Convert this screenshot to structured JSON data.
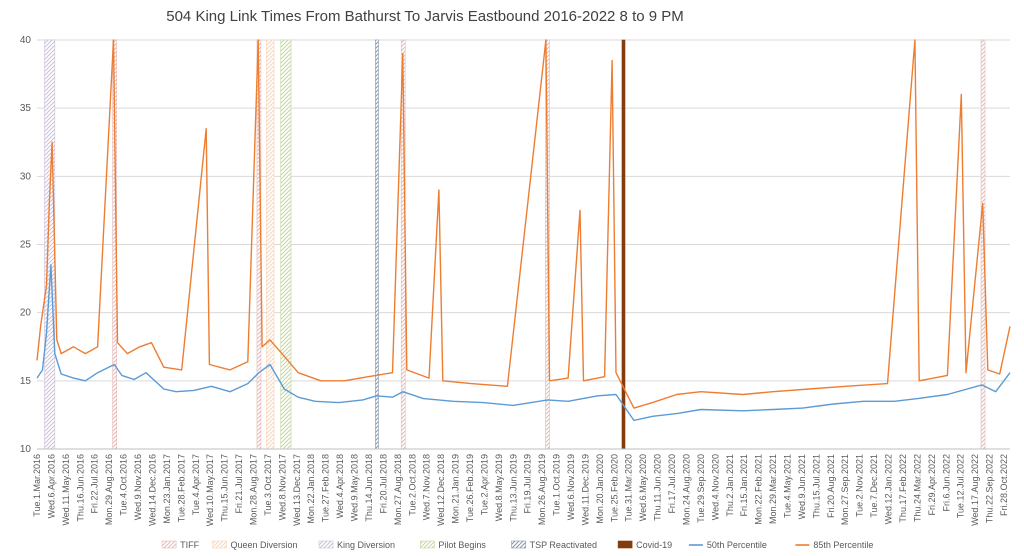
{
  "chart_data": {
    "type": "line",
    "title": "504 King Link Times From Bathurst To Jarvis Eastbound 2016-2022 8 to 9 PM",
    "xlabel": "",
    "ylabel": "",
    "ylim": [
      10,
      40
    ],
    "yticks": [
      10,
      15,
      20,
      25,
      30,
      35,
      40
    ],
    "grid": true,
    "legend_position": "bottom",
    "x_range": [
      "2016-03-01",
      "2022-11-20"
    ],
    "xtick_labels": [
      "Tue.1.Mar.2016",
      "Wed.6.Apr.2016",
      "Wed.11.May.2016",
      "Thu.16.Jun.2016",
      "Fri.22.Jul.2016",
      "Mon.29.Aug.2016",
      "Tue.4.Oct.2016",
      "Wed.9.Nov.2016",
      "Wed.14.Dec.2016",
      "Mon.23.Jan.2017",
      "Tue.28.Feb.2017",
      "Tue.4.Apr.2017",
      "Wed.10.May.2017",
      "Thu.15.Jun.2017",
      "Fri.21.Jul.2017",
      "Mon.28.Aug.2017",
      "Tue.3.Oct.2017",
      "Wed.8.Nov.2017",
      "Wed.13.Dec.2017",
      "Mon.22.Jan.2018",
      "Tue.27.Feb.2018",
      "Wed.4.Apr.2018",
      "Wed.9.May.2018",
      "Thu.14.Jun.2018",
      "Fri.20.Jul.2018",
      "Mon.27.Aug.2018",
      "Tue.2.Oct.2018",
      "Wed.7.Nov.2018",
      "Wed.12.Dec.2018",
      "Mon.21.Jan.2019",
      "Tue.26.Feb.2019",
      "Tue.2.Apr.2019",
      "Wed.8.May.2019",
      "Thu.13.Jun.2019",
      "Fri.19.Jul.2019",
      "Mon.26.Aug.2019",
      "Tue.1.Oct.2019",
      "Wed.6.Nov.2019",
      "Wed.11.Dec.2019",
      "Mon.20.Jan.2020",
      "Tue.25.Feb.2020",
      "Tue.31.Mar.2020",
      "Wed.6.May.2020",
      "Thu.11.Jun.2020",
      "Fri.17.Jul.2020",
      "Mon.24.Aug.2020",
      "Tue.29.Sep.2020",
      "Wed.4.Nov.2020",
      "Thu.2.Jan.2021",
      "Fri.15.Jan.2021",
      "Mon.22.Feb.2021",
      "Mon.29.Mar.2021",
      "Tue.4.May.2021",
      "Wed.9.Jun.2021",
      "Thu.15.Jul.2021",
      "Fri.20.Aug.2021",
      "Mon.27.Sep.2021",
      "Tue.2.Nov.2021",
      "Tue.7.Dec.2021",
      "Wed.12.Jan.2022",
      "Thu.17.Feb.2022",
      "Thu.24.Mar.2022",
      "Fri.29.Apr.2022",
      "Fri.6.Jun.2022",
      "Tue.12.Jul.2022",
      "Wed.17.Aug.2022",
      "Thu.22.Sep.2022",
      "Fri.28.Oct.2022"
    ],
    "events": [
      {
        "name": "TIFF",
        "color": "#e6b8b7",
        "style": "hatch",
        "periods": [
          [
            "2016-09-08",
            "2016-09-18"
          ],
          [
            "2017-09-07",
            "2017-09-17"
          ],
          [
            "2018-09-06",
            "2018-09-16"
          ],
          [
            "2019-09-05",
            "2019-09-15"
          ],
          [
            "2022-09-08",
            "2022-09-18"
          ]
        ]
      },
      {
        "name": "Queen Diversion",
        "color": "#fcd5b4",
        "style": "hatch",
        "periods": [
          [
            "2017-10-01",
            "2017-10-20"
          ]
        ]
      },
      {
        "name": "King Diversion",
        "color": "#ccc0da",
        "style": "hatch",
        "periods": [
          [
            "2016-03-20",
            "2016-04-15"
          ]
        ]
      },
      {
        "name": "Pilot Begins",
        "color": "#c4d79b",
        "style": "hatch",
        "periods": [
          [
            "2017-11-06",
            "2017-12-02"
          ]
        ]
      },
      {
        "name": "TSP Reactivated",
        "color": "#8497b0",
        "style": "hatch",
        "periods": [
          [
            "2018-07-03",
            "2018-07-09"
          ]
        ]
      },
      {
        "name": "Covid-19",
        "color": "#843c0c",
        "style": "solid",
        "periods": [
          [
            "2020-03-16",
            "2020-03-19"
          ]
        ]
      }
    ],
    "series": [
      {
        "name": "50th Percentile",
        "color": "#5b9bd5",
        "values": [
          [
            "2016-03-01",
            15.2
          ],
          [
            "2016-03-15",
            15.8
          ],
          [
            "2016-03-25",
            18.5
          ],
          [
            "2016-04-05",
            23.5
          ],
          [
            "2016-04-15",
            17.0
          ],
          [
            "2016-05-01",
            15.5
          ],
          [
            "2016-06-01",
            15.2
          ],
          [
            "2016-07-01",
            15.0
          ],
          [
            "2016-08-01",
            15.6
          ],
          [
            "2016-09-12",
            16.2
          ],
          [
            "2016-10-01",
            15.4
          ],
          [
            "2016-11-01",
            15.1
          ],
          [
            "2016-12-01",
            15.6
          ],
          [
            "2017-01-15",
            14.4
          ],
          [
            "2017-02-15",
            14.2
          ],
          [
            "2017-04-01",
            14.3
          ],
          [
            "2017-05-15",
            14.6
          ],
          [
            "2017-07-01",
            14.2
          ],
          [
            "2017-08-15",
            14.8
          ],
          [
            "2017-09-12",
            15.6
          ],
          [
            "2017-10-10",
            16.2
          ],
          [
            "2017-11-15",
            14.4
          ],
          [
            "2017-12-20",
            13.8
          ],
          [
            "2018-02-01",
            13.5
          ],
          [
            "2018-04-01",
            13.4
          ],
          [
            "2018-06-01",
            13.6
          ],
          [
            "2018-07-06",
            13.9
          ],
          [
            "2018-08-15",
            13.8
          ],
          [
            "2018-09-10",
            14.2
          ],
          [
            "2018-11-01",
            13.7
          ],
          [
            "2019-01-15",
            13.5
          ],
          [
            "2019-04-01",
            13.4
          ],
          [
            "2019-06-15",
            13.2
          ],
          [
            "2019-09-10",
            13.6
          ],
          [
            "2019-11-01",
            13.5
          ],
          [
            "2020-01-15",
            13.9
          ],
          [
            "2020-03-01",
            14.0
          ],
          [
            "2020-04-15",
            12.1
          ],
          [
            "2020-06-01",
            12.4
          ],
          [
            "2020-08-01",
            12.6
          ],
          [
            "2020-10-01",
            12.9
          ],
          [
            "2021-01-15",
            12.8
          ],
          [
            "2021-04-01",
            12.9
          ],
          [
            "2021-06-15",
            13.0
          ],
          [
            "2021-09-01",
            13.3
          ],
          [
            "2021-11-15",
            13.5
          ],
          [
            "2022-02-01",
            13.5
          ],
          [
            "2022-04-01",
            13.7
          ],
          [
            "2022-06-15",
            14.0
          ],
          [
            "2022-09-10",
            14.7
          ],
          [
            "2022-10-15",
            14.2
          ],
          [
            "2022-11-20",
            15.6
          ]
        ]
      },
      {
        "name": "85th Percentile",
        "color": "#ed7d31",
        "values": [
          [
            "2016-03-01",
            16.5
          ],
          [
            "2016-03-10",
            19.0
          ],
          [
            "2016-03-25",
            22.0
          ],
          [
            "2016-04-01",
            28.0
          ],
          [
            "2016-04-08",
            32.5
          ],
          [
            "2016-04-20",
            18.0
          ],
          [
            "2016-05-01",
            17.0
          ],
          [
            "2016-06-01",
            17.5
          ],
          [
            "2016-07-01",
            17.0
          ],
          [
            "2016-08-01",
            17.5
          ],
          [
            "2016-09-10",
            40.0
          ],
          [
            "2016-09-20",
            17.8
          ],
          [
            "2016-10-15",
            17.0
          ],
          [
            "2016-11-15",
            17.5
          ],
          [
            "2016-12-15",
            17.8
          ],
          [
            "2017-01-15",
            16.0
          ],
          [
            "2017-03-01",
            15.8
          ],
          [
            "2017-05-02",
            33.5
          ],
          [
            "2017-05-10",
            16.2
          ],
          [
            "2017-07-01",
            15.8
          ],
          [
            "2017-08-15",
            16.4
          ],
          [
            "2017-09-10",
            40.0
          ],
          [
            "2017-09-20",
            17.5
          ],
          [
            "2017-10-10",
            18.0
          ],
          [
            "2017-11-15",
            16.8
          ],
          [
            "2017-12-20",
            15.6
          ],
          [
            "2018-02-15",
            15.0
          ],
          [
            "2018-04-15",
            15.0
          ],
          [
            "2018-06-15",
            15.3
          ],
          [
            "2018-08-15",
            15.6
          ],
          [
            "2018-09-10",
            39.0
          ],
          [
            "2018-09-20",
            15.8
          ],
          [
            "2018-11-15",
            15.2
          ],
          [
            "2018-12-10",
            29.0
          ],
          [
            "2018-12-20",
            15.0
          ],
          [
            "2019-03-01",
            14.8
          ],
          [
            "2019-06-01",
            14.6
          ],
          [
            "2019-09-06",
            40.0
          ],
          [
            "2019-09-15",
            15.0
          ],
          [
            "2019-11-01",
            15.2
          ],
          [
            "2019-12-01",
            27.5
          ],
          [
            "2019-12-10",
            15.0
          ],
          [
            "2020-02-01",
            15.3
          ],
          [
            "2020-02-20",
            38.5
          ],
          [
            "2020-03-01",
            15.6
          ],
          [
            "2020-04-15",
            13.0
          ],
          [
            "2020-06-01",
            13.4
          ],
          [
            "2020-08-01",
            14.0
          ],
          [
            "2020-10-01",
            14.2
          ],
          [
            "2021-01-15",
            14.0
          ],
          [
            "2021-04-01",
            14.2
          ],
          [
            "2021-07-01",
            14.4
          ],
          [
            "2021-10-01",
            14.6
          ],
          [
            "2022-01-15",
            14.8
          ],
          [
            "2022-03-25",
            40.0
          ],
          [
            "2022-04-05",
            15.0
          ],
          [
            "2022-06-15",
            15.4
          ],
          [
            "2022-07-20",
            36.0
          ],
          [
            "2022-08-01",
            15.6
          ],
          [
            "2022-09-12",
            28.0
          ],
          [
            "2022-09-25",
            15.8
          ],
          [
            "2022-10-25",
            15.5
          ],
          [
            "2022-11-20",
            19.0
          ]
        ]
      }
    ]
  }
}
